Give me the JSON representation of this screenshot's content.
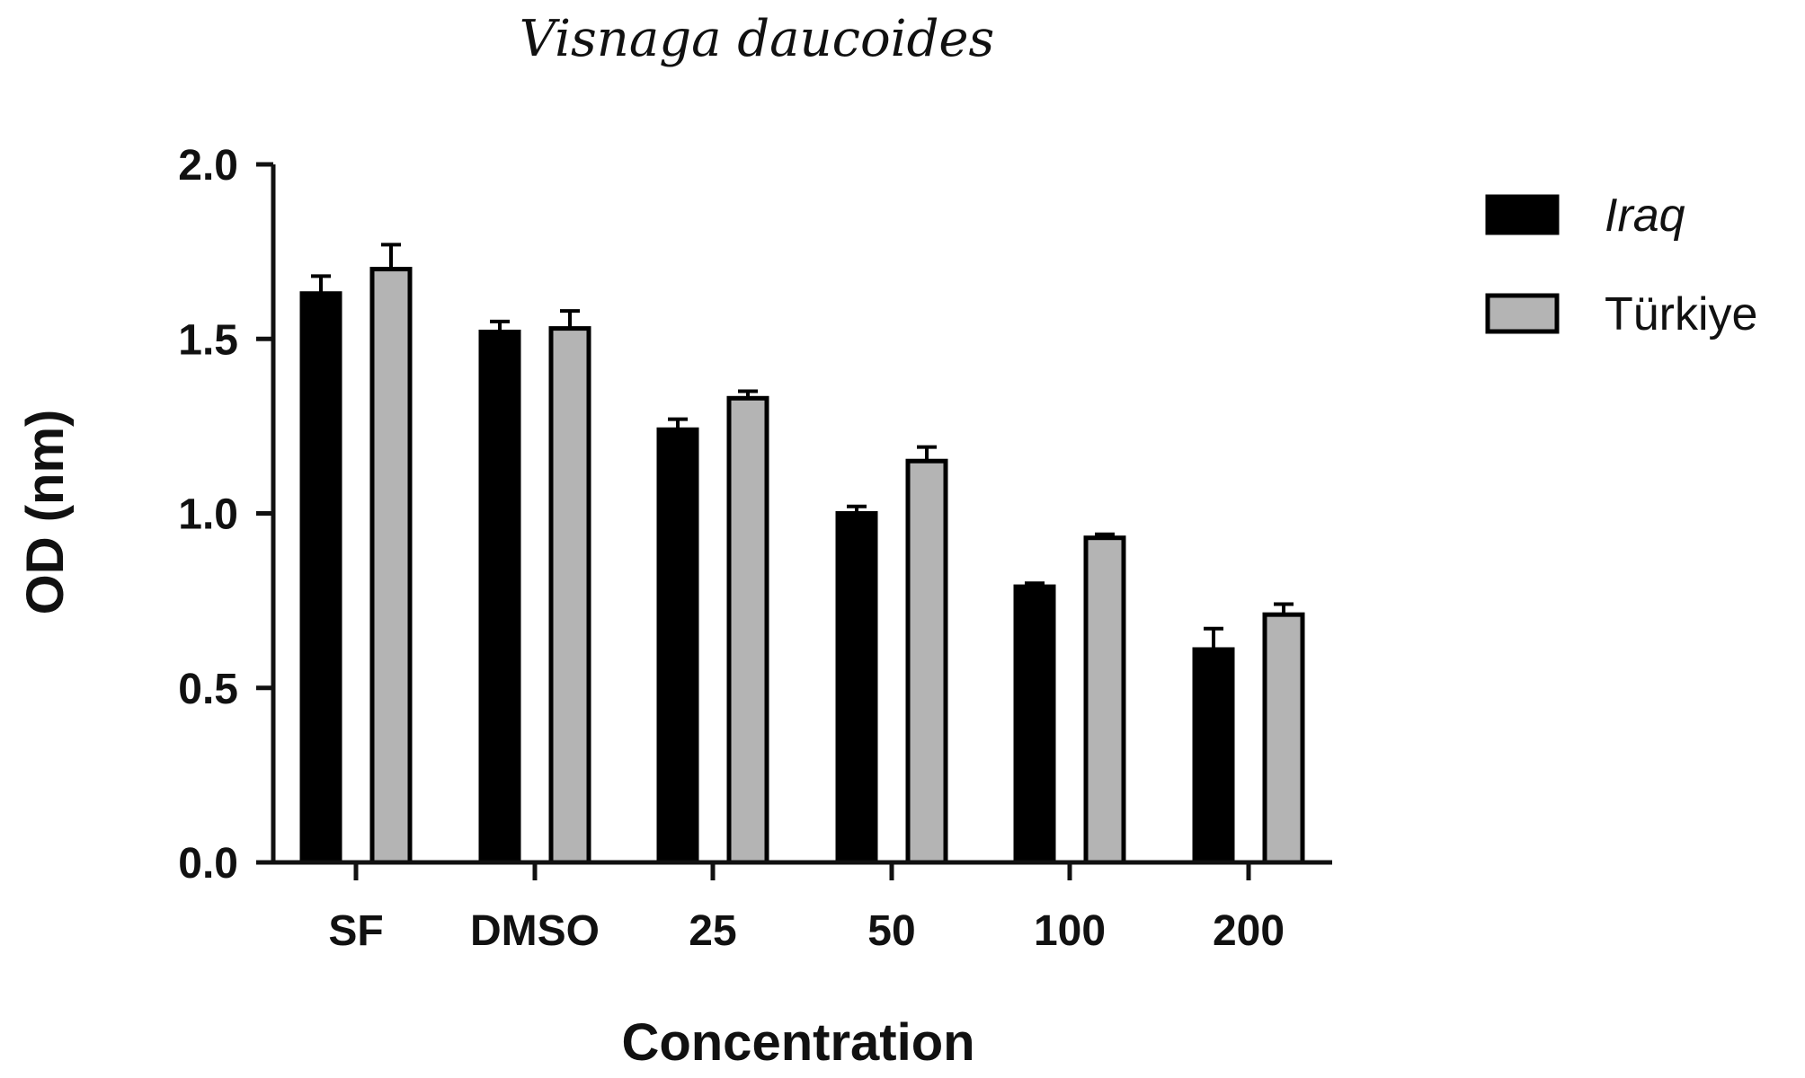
{
  "chart_data": {
    "type": "bar",
    "title": "Visnaga daucoides",
    "xlabel": "Concentration",
    "ylabel": "OD (nm)",
    "categories": [
      "SF",
      "DMSO",
      "25",
      "50",
      "100",
      "200"
    ],
    "ylim": [
      0,
      2.0
    ],
    "yticks": [
      "0.0",
      "0.5",
      "1.0",
      "1.5",
      "2.0"
    ],
    "grid": false,
    "legend_position": "top-right",
    "series": [
      {
        "name": "Iraq",
        "name_style": "italic",
        "color": "#000000",
        "values": [
          1.63,
          1.52,
          1.24,
          1.0,
          0.79,
          0.61
        ],
        "errors": [
          0.05,
          0.03,
          0.03,
          0.02,
          0.01,
          0.06
        ]
      },
      {
        "name": "Türkiye",
        "name_style": "normal",
        "color": "#b4b4b4",
        "values": [
          1.7,
          1.53,
          1.33,
          1.15,
          0.93,
          0.71
        ],
        "errors": [
          0.07,
          0.05,
          0.02,
          0.04,
          0.01,
          0.03
        ]
      }
    ]
  }
}
